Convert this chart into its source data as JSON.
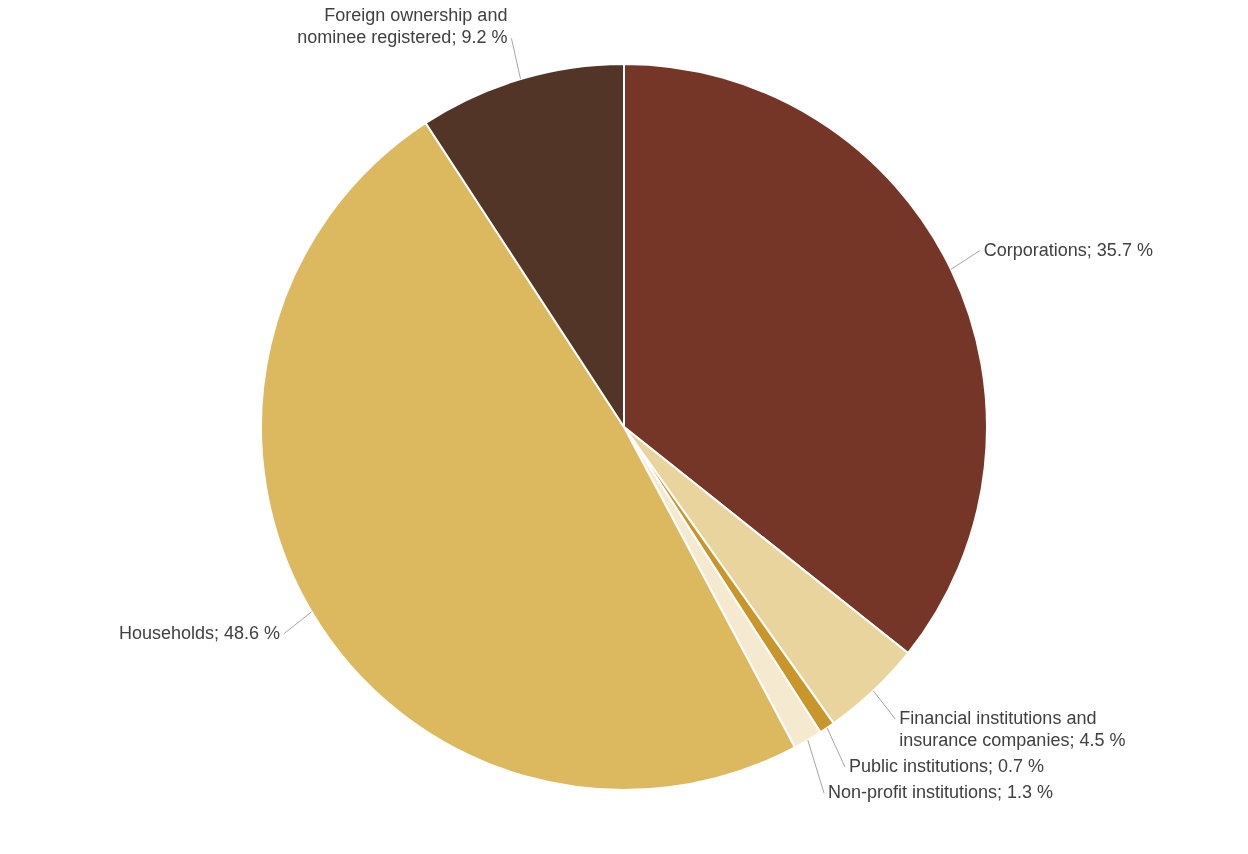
{
  "chart_data": {
    "type": "pie",
    "categories": [
      "Corporations",
      "Financial institutions and insurance companies",
      "Public institutions",
      "Non-profit institutions",
      "Households",
      "Foreign ownership and nominee registered"
    ],
    "values": [
      35.7,
      4.5,
      0.7,
      1.3,
      48.6,
      9.2
    ],
    "value_labels": [
      "35.7 %",
      "4.5 %",
      "0.7 %",
      "1.3 %",
      "48.6 %",
      "9.2 %"
    ],
    "colors": [
      "#763627",
      "#e9d49d",
      "#c8962a",
      "#f5ead0",
      "#dcb85e",
      "#523526"
    ],
    "legend": false
  }
}
